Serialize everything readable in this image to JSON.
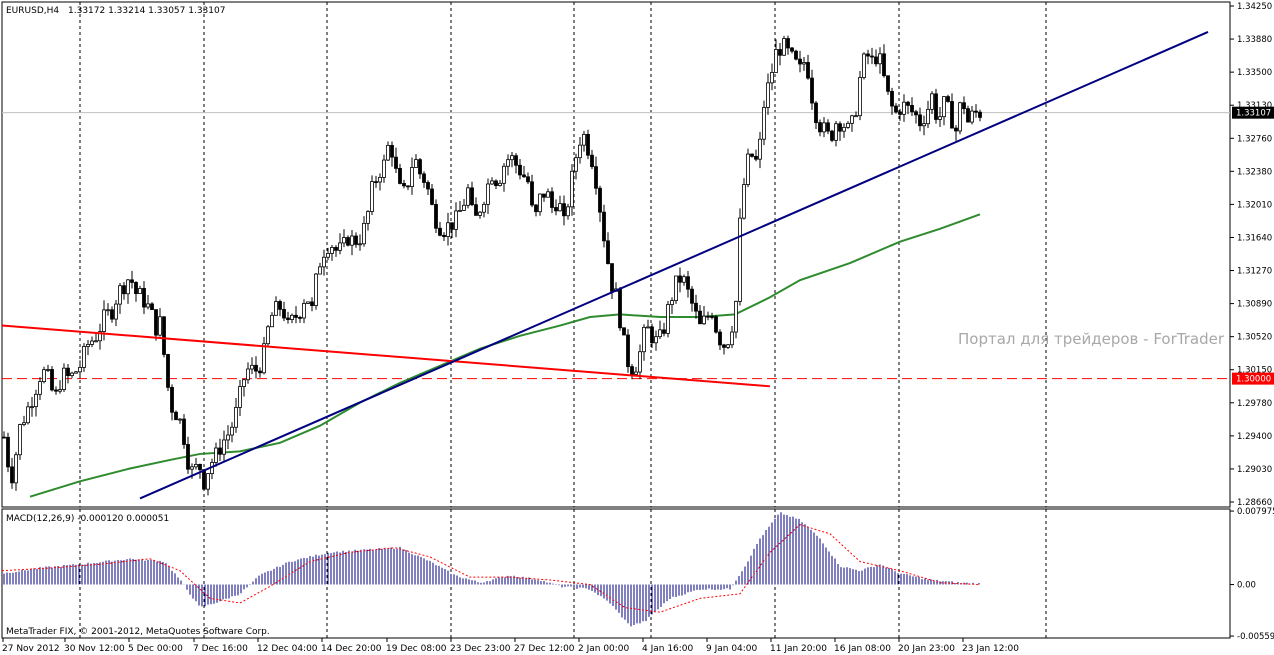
{
  "header": {
    "symbol": "EURUSD,H4",
    "ohlc": "1.33172 1.33214 1.33057 1.33107"
  },
  "watermark": "Портал для трейдеров - ForTrader",
  "copyright": "MetaTrader FIX, © 2001-2012, MetaQuotes Software Corp.",
  "macd_title": "MACD(12,26,9) -0.000120 0.000051",
  "price_axis": {
    "ticks": [
      "1.34250",
      "1.33880",
      "1.33500",
      "1.33130",
      "1.32760",
      "1.32380",
      "1.32010",
      "1.31640",
      "1.31270",
      "1.30890",
      "1.30520",
      "1.30150",
      "1.29780",
      "1.29400",
      "1.29030",
      "1.28660"
    ],
    "current_price": "1.33107",
    "level_price": "1.30000"
  },
  "macd_axis": {
    "ticks": [
      "0.007975",
      "0.00",
      "-0.00559"
    ]
  },
  "time_axis": {
    "labels": [
      "27 Nov 2012",
      "30 Nov 12:00",
      "5 Dec 00:00",
      "7 Dec 16:00",
      "12 Dec 04:00",
      "14 Dec 20:00",
      "19 Dec 08:00",
      "23 Dec 23:00",
      "27 Dec 12:00",
      "2 Jan 00:00",
      "4 Jan 16:00",
      "9 Jan 04:00",
      "11 Jan 20:00",
      "16 Jan 08:00",
      "20 Jan 23:00",
      "23 Jan 12:00"
    ]
  },
  "colors": {
    "candle": "#000000",
    "ma": "#2e8b2e",
    "trend_up": "#000080",
    "trend_down": "#ff0000",
    "level": "#ff0000",
    "macd_hist": "#000080",
    "macd_signal": "#ff0000",
    "grid": "#000000"
  },
  "chart_data": {
    "type": "candlestick",
    "symbol": "EURUSD",
    "timeframe": "H4",
    "ylim": [
      1.285,
      1.344
    ],
    "level": 1.3,
    "last": 1.33107,
    "path": [
      [
        0,
        1.2945
      ],
      [
        6,
        1.2925
      ],
      [
        10,
        1.288
      ],
      [
        14,
        1.2895
      ],
      [
        19,
        1.294
      ],
      [
        26,
        1.296
      ],
      [
        33,
        1.298
      ],
      [
        42,
        1.301
      ],
      [
        48,
        1.3
      ],
      [
        55,
        1.2975
      ],
      [
        62,
        1.3005
      ],
      [
        70,
        1.3
      ],
      [
        80,
        1.3015
      ],
      [
        88,
        1.304
      ],
      [
        96,
        1.305
      ],
      [
        104,
        1.307
      ],
      [
        112,
        1.308
      ],
      [
        118,
        1.31
      ],
      [
        124,
        1.311
      ],
      [
        130,
        1.312
      ],
      [
        136,
        1.31
      ],
      [
        142,
        1.3095
      ],
      [
        150,
        1.308
      ],
      [
        156,
        1.306
      ],
      [
        160,
        1.3065
      ],
      [
        166,
        1.301
      ],
      [
        170,
        1.297
      ],
      [
        176,
        1.296
      ],
      [
        182,
        1.2945
      ],
      [
        188,
        1.2905
      ],
      [
        194,
        1.2885
      ],
      [
        198,
        1.2905
      ],
      [
        204,
        1.288
      ],
      [
        210,
        1.29
      ],
      [
        216,
        1.291
      ],
      [
        222,
        1.2925
      ],
      [
        228,
        1.2935
      ],
      [
        234,
        1.295
      ],
      [
        240,
        1.298
      ],
      [
        246,
        1.301
      ],
      [
        252,
        1.301
      ],
      [
        258,
        1.301
      ],
      [
        264,
        1.303
      ],
      [
        270,
        1.307
      ],
      [
        276,
        1.308
      ],
      [
        282,
        1.3085
      ],
      [
        288,
        1.306
      ],
      [
        294,
        1.307
      ],
      [
        300,
        1.308
      ],
      [
        306,
        1.31
      ],
      [
        312,
        1.308
      ],
      [
        318,
        1.313
      ],
      [
        324,
        1.315
      ],
      [
        330,
        1.316
      ],
      [
        336,
        1.315
      ],
      [
        342,
        1.315
      ],
      [
        348,
        1.3165
      ],
      [
        354,
        1.316
      ],
      [
        360,
        1.3165
      ],
      [
        366,
        1.318
      ],
      [
        372,
        1.322
      ],
      [
        378,
        1.324
      ],
      [
        384,
        1.325
      ],
      [
        390,
        1.328
      ],
      [
        396,
        1.324
      ],
      [
        402,
        1.321
      ],
      [
        408,
        1.323
      ],
      [
        414,
        1.326
      ],
      [
        420,
        1.324
      ],
      [
        426,
        1.323
      ],
      [
        432,
        1.32
      ],
      [
        438,
        1.318
      ],
      [
        444,
        1.3175
      ],
      [
        450,
        1.318
      ],
      [
        456,
        1.3185
      ],
      [
        462,
        1.32
      ],
      [
        468,
        1.322
      ],
      [
        474,
        1.318
      ],
      [
        480,
        1.32
      ],
      [
        486,
        1.322
      ],
      [
        492,
        1.324
      ],
      [
        498,
        1.323
      ],
      [
        504,
        1.325
      ],
      [
        510,
        1.326
      ],
      [
        516,
        1.325
      ],
      [
        522,
        1.324
      ],
      [
        528,
        1.323
      ],
      [
        534,
        1.318
      ],
      [
        540,
        1.321
      ],
      [
        546,
        1.322
      ],
      [
        552,
        1.32
      ],
      [
        558,
        1.321
      ],
      [
        564,
        1.318
      ],
      [
        570,
        1.322
      ],
      [
        576,
        1.326
      ],
      [
        582,
        1.329
      ],
      [
        588,
        1.327
      ],
      [
        594,
        1.325
      ],
      [
        600,
        1.32
      ],
      [
        606,
        1.315
      ],
      [
        612,
        1.311
      ],
      [
        618,
        1.309
      ],
      [
        622,
        1.305
      ],
      [
        628,
        1.302
      ],
      [
        634,
        1.301
      ],
      [
        640,
        1.303
      ],
      [
        646,
        1.306
      ],
      [
        652,
        1.305
      ],
      [
        658,
        1.304
      ],
      [
        664,
        1.306
      ],
      [
        670,
        1.309
      ],
      [
        676,
        1.311
      ],
      [
        682,
        1.312
      ],
      [
        688,
        1.31
      ],
      [
        694,
        1.308
      ],
      [
        700,
        1.306
      ],
      [
        706,
        1.307
      ],
      [
        712,
        1.308
      ],
      [
        718,
        1.305
      ],
      [
        724,
        1.304
      ],
      [
        730,
        1.305
      ],
      [
        736,
        1.309
      ],
      [
        740,
        1.318
      ],
      [
        746,
        1.325
      ],
      [
        752,
        1.326
      ],
      [
        758,
        1.325
      ],
      [
        764,
        1.332
      ],
      [
        770,
        1.335
      ],
      [
        776,
        1.338
      ],
      [
        782,
        1.339
      ],
      [
        788,
        1.338
      ],
      [
        794,
        1.337
      ],
      [
        800,
        1.336
      ],
      [
        806,
        1.3375
      ],
      [
        812,
        1.333
      ],
      [
        818,
        1.33
      ],
      [
        824,
        1.329
      ],
      [
        830,
        1.328
      ],
      [
        836,
        1.33
      ],
      [
        842,
        1.33
      ],
      [
        848,
        1.329
      ],
      [
        854,
        1.33
      ],
      [
        860,
        1.335
      ],
      [
        866,
        1.338
      ],
      [
        872,
        1.337
      ],
      [
        878,
        1.338
      ],
      [
        884,
        1.335
      ],
      [
        890,
        1.332
      ],
      [
        896,
        1.331
      ],
      [
        902,
        1.332
      ],
      [
        908,
        1.3315
      ],
      [
        914,
        1.331
      ],
      [
        920,
        1.33
      ],
      [
        926,
        1.331
      ],
      [
        932,
        1.333
      ],
      [
        938,
        1.33
      ],
      [
        944,
        1.332
      ],
      [
        950,
        1.331
      ],
      [
        956,
        1.329
      ],
      [
        962,
        1.333
      ],
      [
        968,
        1.33
      ],
      [
        974,
        1.331
      ],
      [
        980,
        1.3311
      ]
    ],
    "ma": [
      [
        30,
        1.2862
      ],
      [
        80,
        1.288
      ],
      [
        130,
        1.2895
      ],
      [
        170,
        1.2905
      ],
      [
        200,
        1.2912
      ],
      [
        240,
        1.2915
      ],
      [
        280,
        1.2925
      ],
      [
        320,
        1.2945
      ],
      [
        360,
        1.2972
      ],
      [
        400,
        1.2995
      ],
      [
        440,
        1.3015
      ],
      [
        480,
        1.3035
      ],
      [
        520,
        1.305
      ],
      [
        560,
        1.3062
      ],
      [
        590,
        1.3072
      ],
      [
        620,
        1.3075
      ],
      [
        660,
        1.3072
      ],
      [
        700,
        1.3072
      ],
      [
        735,
        1.3075
      ],
      [
        770,
        1.3095
      ],
      [
        800,
        1.3115
      ],
      [
        850,
        1.3135
      ],
      [
        900,
        1.316
      ],
      [
        940,
        1.3175
      ],
      [
        980,
        1.3192
      ]
    ],
    "trend_up": {
      "from": [
        140,
        1.286
      ],
      "to": [
        1208,
        1.3405
      ]
    },
    "trend_down": {
      "from": [
        2,
        1.3062
      ],
      "to": [
        770,
        1.2991
      ]
    },
    "macd": {
      "ylim": [
        -0.0058,
        0.0082
      ],
      "zero": 0,
      "hist_path": [
        [
          2,
          0.0012
        ],
        [
          40,
          0.0018
        ],
        [
          80,
          0.0022
        ],
        [
          130,
          0.0028
        ],
        [
          165,
          0.0025
        ],
        [
          180,
          0.0005
        ],
        [
          200,
          -0.0025
        ],
        [
          215,
          -0.002
        ],
        [
          240,
          -0.001
        ],
        [
          260,
          0.001
        ],
        [
          290,
          0.0025
        ],
        [
          330,
          0.0035
        ],
        [
          370,
          0.0038
        ],
        [
          400,
          0.004
        ],
        [
          430,
          0.0025
        ],
        [
          455,
          0.001
        ],
        [
          480,
          0.0002
        ],
        [
          510,
          0.001
        ],
        [
          540,
          0.0005
        ],
        [
          560,
          -0.0002
        ],
        [
          590,
          -0.0005
        ],
        [
          610,
          -0.002
        ],
        [
          630,
          -0.0045
        ],
        [
          645,
          -0.004
        ],
        [
          670,
          -0.0015
        ],
        [
          700,
          -0.0005
        ],
        [
          730,
          -0.0005
        ],
        [
          745,
          0.002
        ],
        [
          760,
          0.005
        ],
        [
          780,
          0.0078
        ],
        [
          800,
          0.007
        ],
        [
          820,
          0.005
        ],
        [
          840,
          0.002
        ],
        [
          860,
          0.0015
        ],
        [
          880,
          0.0022
        ],
        [
          900,
          0.0012
        ],
        [
          930,
          0.0005
        ],
        [
          960,
          0.0002
        ],
        [
          980,
          0.0001
        ]
      ],
      "signal_path": [
        [
          2,
          0.0015
        ],
        [
          50,
          0.0018
        ],
        [
          100,
          0.0022
        ],
        [
          150,
          0.0028
        ],
        [
          180,
          0.0015
        ],
        [
          210,
          -0.0015
        ],
        [
          240,
          -0.002
        ],
        [
          270,
          -0.0002
        ],
        [
          310,
          0.0025
        ],
        [
          350,
          0.0035
        ],
        [
          395,
          0.004
        ],
        [
          430,
          0.003
        ],
        [
          470,
          0.0008
        ],
        [
          510,
          0.0008
        ],
        [
          550,
          0.0005
        ],
        [
          590,
          0.0
        ],
        [
          625,
          -0.0025
        ],
        [
          660,
          -0.003
        ],
        [
          700,
          -0.0015
        ],
        [
          740,
          -0.001
        ],
        [
          770,
          0.0035
        ],
        [
          800,
          0.0065
        ],
        [
          830,
          0.0055
        ],
        [
          860,
          0.0025
        ],
        [
          900,
          0.0015
        ],
        [
          940,
          0.0002
        ],
        [
          980,
          0.0
        ]
      ]
    }
  }
}
